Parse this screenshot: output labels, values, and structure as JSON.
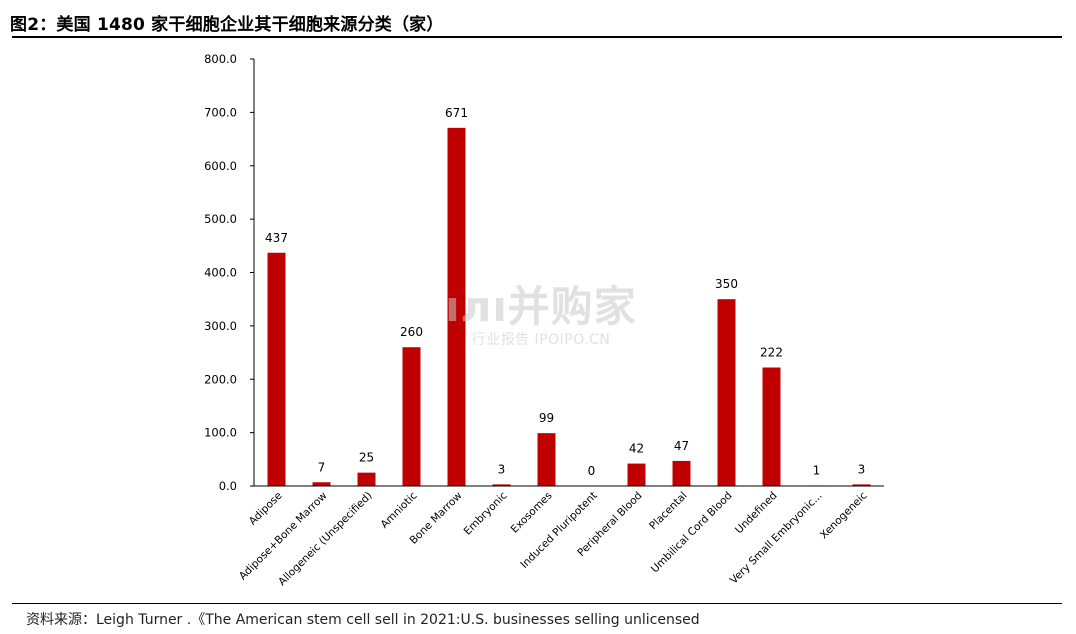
{
  "figure": {
    "title": "图2：美国 1480 家干细胞企业其干细胞来源分类（家）"
  },
  "watermark": {
    "main": "ıлı并购家",
    "sub": "行业报告 IPOIPO.CN"
  },
  "source": {
    "text": "资料来源：Leigh Turner .《The American stem cell sell in 2021:U.S. businesses selling unlicensed"
  },
  "colors": {
    "bar": "#C00000",
    "axis": "#000000",
    "text": "#000000"
  },
  "chart_data": {
    "type": "bar",
    "categories": [
      "Adipose",
      "Adipose+Bone Marrow",
      "Allogeneic (Unspecified)",
      "Amniotic",
      "Bone Marrow",
      "Embryonic",
      "Exosomes",
      "Induced Pluripotent",
      "Peripheral Blood",
      "Placental",
      "Umbilical Cord Blood",
      "Undefined",
      "Very Small Embryonic...",
      "Xenogeneic"
    ],
    "values": [
      437,
      7,
      25,
      260,
      671,
      3,
      99,
      0,
      42,
      47,
      350,
      222,
      1,
      3
    ],
    "data_labels": [
      "437",
      "7",
      "25",
      "260",
      "671",
      "3",
      "99",
      "0",
      "42",
      "47",
      "350",
      "222",
      "1",
      "3"
    ],
    "y_ticks": [
      "0.0",
      "100.0",
      "200.0",
      "300.0",
      "400.0",
      "500.0",
      "600.0",
      "700.0",
      "800.0"
    ],
    "ylim": [
      0,
      800
    ],
    "grid": false,
    "legend": "none"
  }
}
